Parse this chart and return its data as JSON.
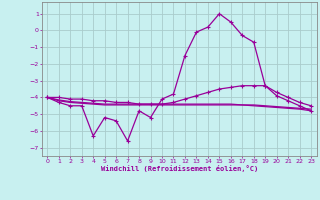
{
  "title": "",
  "xlabel": "Windchill (Refroidissement éolien,°C)",
  "bg_color": "#c8f0f0",
  "line_color": "#990099",
  "grid_color": "#aacccc",
  "spine_color": "#888888",
  "xlim": [
    -0.5,
    23.5
  ],
  "ylim": [
    -7.5,
    1.7
  ],
  "yticks": [
    1,
    0,
    -1,
    -2,
    -3,
    -4,
    -5,
    -6,
    -7
  ],
  "xticks": [
    0,
    1,
    2,
    3,
    4,
    5,
    6,
    7,
    8,
    9,
    10,
    11,
    12,
    13,
    14,
    15,
    16,
    17,
    18,
    19,
    20,
    21,
    22,
    23
  ],
  "line1_y": [
    -4.0,
    -4.3,
    -4.5,
    -4.5,
    -6.3,
    -5.2,
    -5.4,
    -6.6,
    -4.8,
    -5.2,
    -4.1,
    -3.8,
    -1.5,
    -0.1,
    0.2,
    1.0,
    0.5,
    -0.3,
    -0.7,
    -3.3,
    -3.9,
    -4.2,
    -4.5,
    -4.8
  ],
  "line2_y": [
    -4.0,
    -4.0,
    -4.1,
    -4.1,
    -4.2,
    -4.2,
    -4.3,
    -4.3,
    -4.4,
    -4.4,
    -4.4,
    -4.3,
    -4.1,
    -3.9,
    -3.7,
    -3.5,
    -3.4,
    -3.3,
    -3.3,
    -3.3,
    -3.7,
    -4.0,
    -4.3,
    -4.5
  ],
  "line3_y": [
    -4.0,
    -4.2,
    -4.3,
    -4.35,
    -4.4,
    -4.45,
    -4.45,
    -4.45,
    -4.45,
    -4.45,
    -4.45,
    -4.45,
    -4.45,
    -4.45,
    -4.45,
    -4.45,
    -4.45,
    -4.45,
    -4.45,
    -4.5,
    -4.55,
    -4.6,
    -4.65,
    -4.7
  ],
  "line4_y": [
    -4.0,
    -4.15,
    -4.25,
    -4.3,
    -4.35,
    -4.4,
    -4.4,
    -4.4,
    -4.4,
    -4.4,
    -4.4,
    -4.4,
    -4.4,
    -4.4,
    -4.4,
    -4.4,
    -4.4,
    -4.45,
    -4.5,
    -4.55,
    -4.6,
    -4.65,
    -4.7,
    -4.8
  ]
}
